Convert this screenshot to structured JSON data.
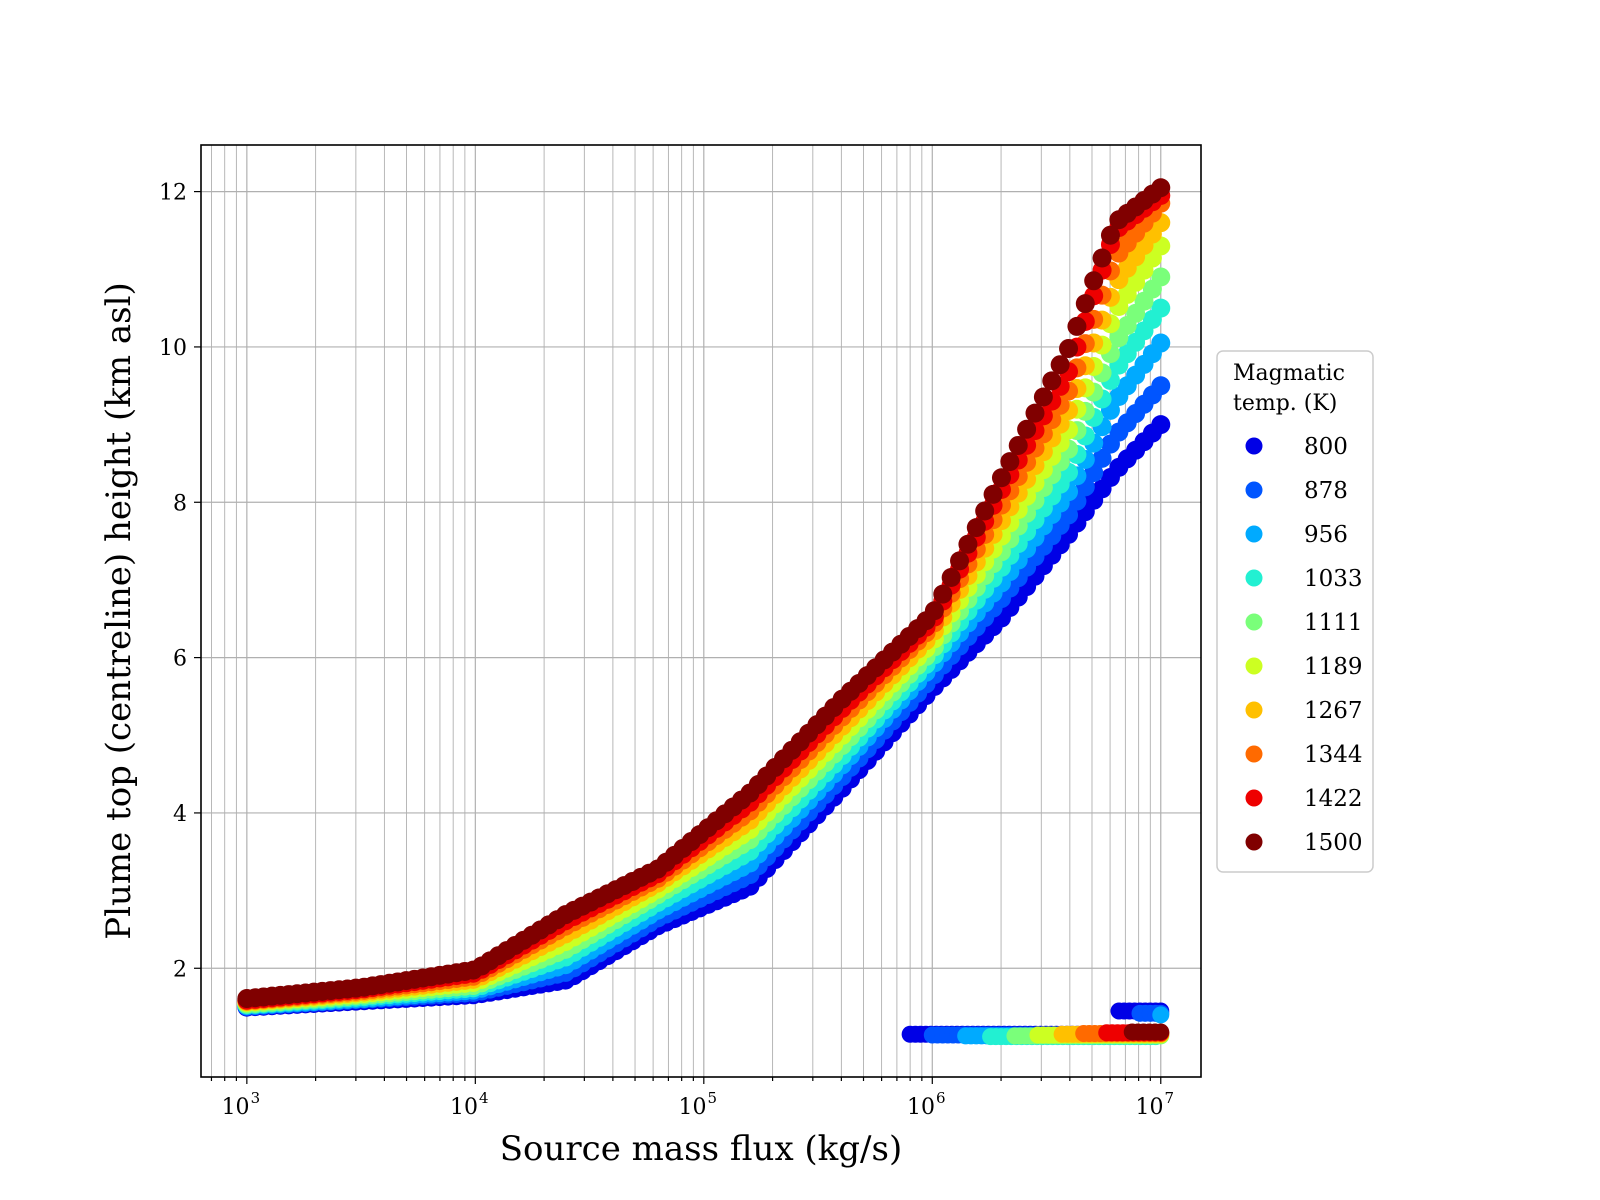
{
  "chart_data": {
    "type": "scatter",
    "xlabel": "Source mass flux (kg/s)",
    "ylabel": "Plume top (centreline) height (km asl)",
    "xscale": "log",
    "xlim": [
      630,
      15000000
    ],
    "ylim": [
      0.6,
      12.6
    ],
    "x_ticks": [
      {
        "base": "10",
        "exp": "3",
        "value": 1000
      },
      {
        "base": "10",
        "exp": "4",
        "value": 10000
      },
      {
        "base": "10",
        "exp": "5",
        "value": 100000
      },
      {
        "base": "10",
        "exp": "6",
        "value": 1000000
      },
      {
        "base": "10",
        "exp": "7",
        "value": 10000000
      }
    ],
    "y_ticks": [
      {
        "label": "2",
        "value": 2
      },
      {
        "label": "4",
        "value": 4
      },
      {
        "label": "6",
        "value": 6
      },
      {
        "label": "8",
        "value": 8
      },
      {
        "label": "10",
        "value": 10
      },
      {
        "label": "12",
        "value": 12
      }
    ],
    "grid": true,
    "legend": {
      "title_lines": [
        "Magmatic",
        "temp. (K)"
      ],
      "placement": "right-outside"
    },
    "curve_log_x": [
      3,
      3.5,
      4,
      4.4,
      4.8,
      5.2,
      5.6,
      6,
      6.3,
      6.6,
      6.8,
      7
    ],
    "series": [
      {
        "name": "800",
        "color": "#0000e6",
        "y_curve": [
          1.5,
          1.58,
          1.66,
          1.85,
          2.55,
          3.05,
          4.3,
          5.6,
          6.5,
          7.6,
          8.4,
          9.0
        ],
        "branch_y": 1.15,
        "branch_x0": 800000,
        "branch_tail_y": 1.45,
        "branch_tail_x0": 6500000
      },
      {
        "name": "878",
        "color": "#0055ff",
        "y_curve": [
          1.51,
          1.6,
          1.69,
          1.95,
          2.65,
          3.2,
          4.45,
          5.75,
          6.75,
          7.85,
          8.85,
          9.5
        ],
        "branch_y": 1.14,
        "branch_x0": 1000000,
        "branch_tail_y": 1.42,
        "branch_tail_x0": 8000000
      },
      {
        "name": "956",
        "color": "#00aaff",
        "y_curve": [
          1.52,
          1.61,
          1.72,
          2.05,
          2.75,
          3.35,
          4.6,
          5.9,
          6.95,
          8.15,
          9.3,
          10.05
        ],
        "branch_y": 1.13,
        "branch_x0": 1400000,
        "branch_tail_y": 1.4,
        "branch_tail_x0": 9500000
      },
      {
        "name": "1033",
        "color": "#22f0d2",
        "y_curve": [
          1.53,
          1.63,
          1.75,
          2.15,
          2.85,
          3.5,
          4.72,
          6.0,
          7.15,
          8.4,
          9.7,
          10.5
        ],
        "branch_y": 1.12,
        "branch_x0": 1800000,
        "branch_tail_y": 1.15,
        "branch_tail_x0": 10000000
      },
      {
        "name": "1111",
        "color": "#7aff7a",
        "y_curve": [
          1.54,
          1.65,
          1.78,
          2.25,
          2.95,
          3.65,
          4.85,
          6.1,
          7.35,
          8.7,
          10.05,
          10.9
        ],
        "branch_y": 1.13,
        "branch_x0": 2300000,
        "branch_tail_y": 1.13,
        "branch_tail_x0": 10000000
      },
      {
        "name": "1189",
        "color": "#ccff22",
        "y_curve": [
          1.56,
          1.67,
          1.82,
          2.35,
          3.02,
          3.78,
          4.98,
          6.2,
          7.55,
          8.95,
          10.45,
          11.3
        ],
        "branch_y": 1.14,
        "branch_x0": 2900000,
        "branch_tail_y": 1.14,
        "branch_tail_x0": 10000000
      },
      {
        "name": "1267",
        "color": "#ffc000",
        "y_curve": [
          1.57,
          1.69,
          1.86,
          2.45,
          3.1,
          3.9,
          5.1,
          6.3,
          7.75,
          9.2,
          10.8,
          11.6
        ],
        "branch_y": 1.15,
        "branch_x0": 3700000,
        "branch_tail_y": 1.15,
        "branch_tail_x0": 10000000
      },
      {
        "name": "1344",
        "color": "#ff6a00",
        "y_curve": [
          1.58,
          1.71,
          1.9,
          2.55,
          3.16,
          4.02,
          5.22,
          6.4,
          7.95,
          9.45,
          11.15,
          11.85
        ],
        "branch_y": 1.16,
        "branch_x0": 4600000,
        "branch_tail_y": 1.16,
        "branch_tail_x0": 10000000
      },
      {
        "name": "1422",
        "color": "#ee0000",
        "y_curve": [
          1.59,
          1.73,
          1.94,
          2.62,
          3.22,
          4.13,
          5.33,
          6.47,
          8.15,
          9.7,
          11.5,
          11.95
        ],
        "branch_y": 1.17,
        "branch_x0": 5800000,
        "branch_tail_y": 1.17,
        "branch_tail_x0": 10000000
      },
      {
        "name": "1500",
        "color": "#800000",
        "y_curve": [
          1.61,
          1.75,
          1.98,
          2.7,
          3.28,
          4.25,
          5.45,
          6.55,
          8.3,
          10.0,
          11.6,
          12.05
        ],
        "branch_y": 1.18,
        "branch_x0": 7500000,
        "branch_tail_y": 1.18,
        "branch_tail_x0": 10000000
      }
    ]
  }
}
